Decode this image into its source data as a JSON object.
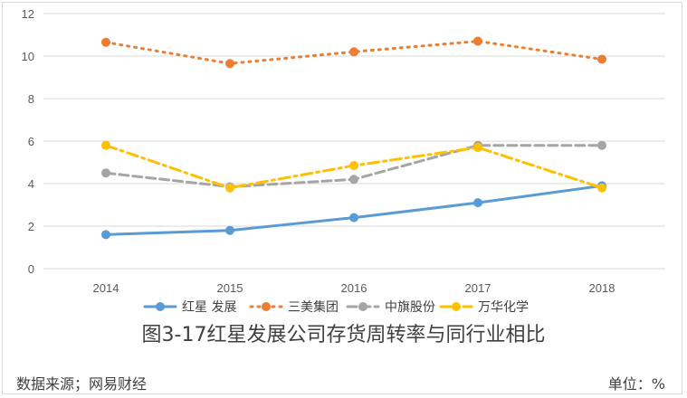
{
  "chart_data": {
    "type": "line",
    "title": "图3-17红星发展公司存货周转率与同行业相比",
    "categories": [
      "2014",
      "2015",
      "2016",
      "2017",
      "2018"
    ],
    "ylim": [
      0,
      12
    ],
    "yticks": [
      0,
      2,
      4,
      6,
      8,
      10,
      12
    ],
    "grid": true,
    "legend_position": "bottom",
    "series": [
      {
        "name": "红星 发展",
        "values": [
          1.6,
          1.8,
          2.4,
          3.1,
          3.9
        ],
        "color": "#5b9bd5",
        "style": "solid"
      },
      {
        "name": "三美集团",
        "values": [
          10.65,
          9.65,
          10.2,
          10.7,
          9.85
        ],
        "color": "#ed7d31",
        "style": "dotted"
      },
      {
        "name": "中旗股份",
        "values": [
          4.5,
          3.85,
          4.2,
          5.8,
          5.8
        ],
        "color": "#a5a5a5",
        "style": "dashed"
      },
      {
        "name": "万华化学",
        "values": [
          5.8,
          3.8,
          4.85,
          5.7,
          3.8
        ],
        "color": "#ffc000",
        "style": "dashdot"
      }
    ]
  },
  "footer": {
    "source": "数据来源；网易财经",
    "unit": "单位：%"
  }
}
